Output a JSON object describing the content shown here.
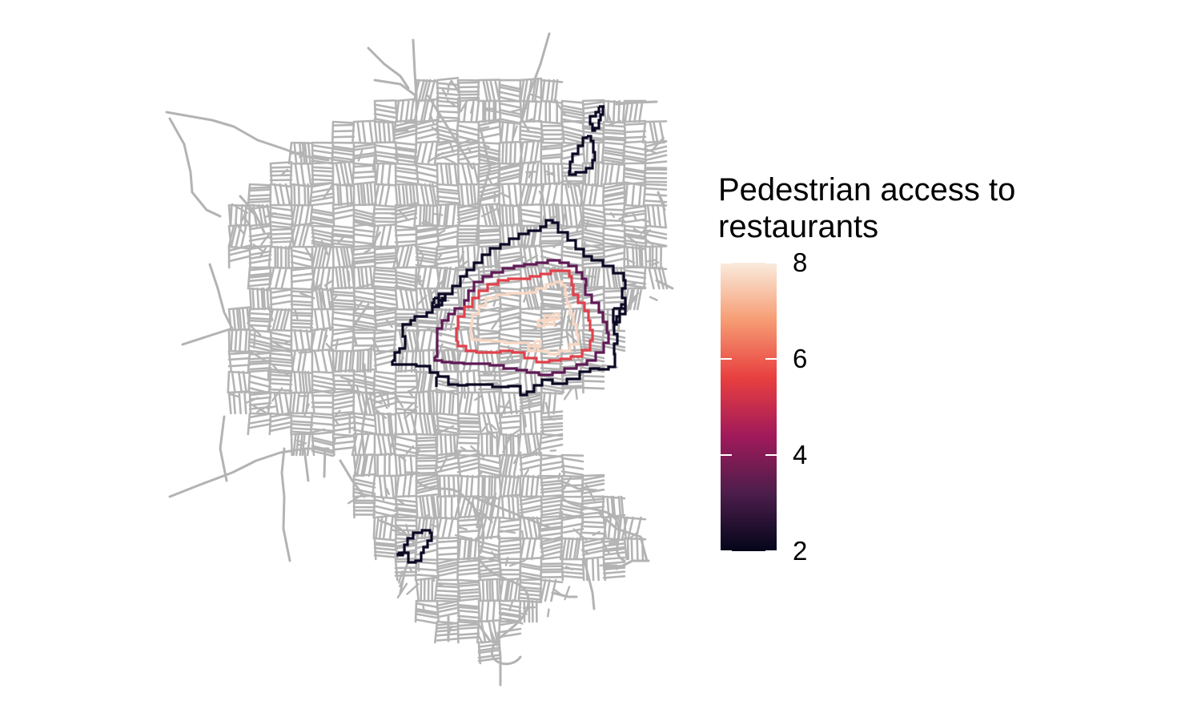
{
  "map": {
    "basemap": "street network",
    "basemap_color": "#b3b3b3",
    "contour_levels": [
      2,
      4,
      6,
      8
    ],
    "contour_colors": [
      "#0b0924",
      "#5f1a55",
      "#e0414b",
      "#f8d7c4"
    ]
  },
  "legend": {
    "title_line1": "Pedestrian access to",
    "title_line2": "restaurants",
    "min": 2,
    "max": 8,
    "ticks": [
      {
        "value": 2,
        "label": "2"
      },
      {
        "value": 4,
        "label": "4"
      },
      {
        "value": 6,
        "label": "6"
      },
      {
        "value": 8,
        "label": "8"
      }
    ],
    "gradient": [
      "#03051a",
      "#4c1d4b",
      "#a11a5b",
      "#e83f3f",
      "#f69c73",
      "#faebdd"
    ]
  }
}
